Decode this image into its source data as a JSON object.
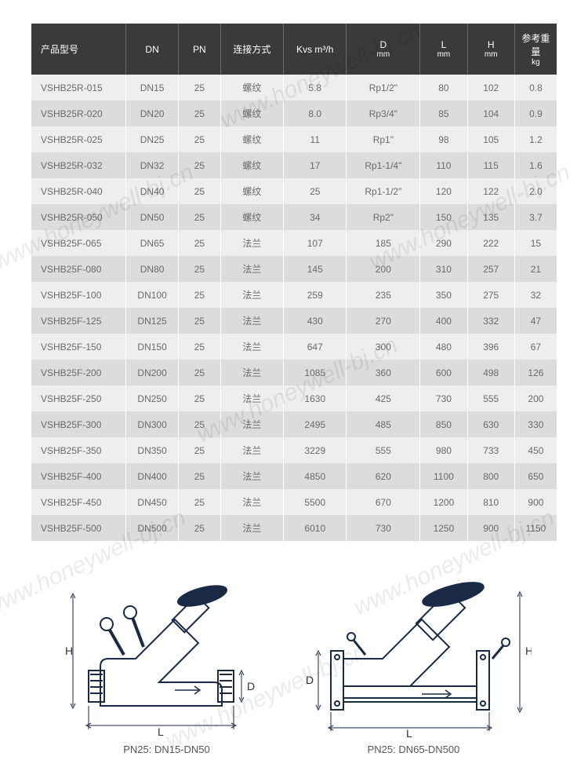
{
  "table": {
    "headers": [
      {
        "top": "产品型号",
        "sub": ""
      },
      {
        "top": "DN",
        "sub": ""
      },
      {
        "top": "PN",
        "sub": ""
      },
      {
        "top": "连接方式",
        "sub": ""
      },
      {
        "top": "Kvs m³/h",
        "sub": ""
      },
      {
        "top": "D",
        "sub": "mm"
      },
      {
        "top": "L",
        "sub": "mm"
      },
      {
        "top": "H",
        "sub": "mm"
      },
      {
        "top": "参考重量",
        "sub": "kg"
      }
    ],
    "rows": [
      [
        "VSHB25R-015",
        "DN15",
        "25",
        "螺纹",
        "5.8",
        "Rp1/2\"",
        "80",
        "102",
        "0.8"
      ],
      [
        "VSHB25R-020",
        "DN20",
        "25",
        "螺纹",
        "8.0",
        "Rp3/4\"",
        "85",
        "104",
        "0.9"
      ],
      [
        "VSHB25R-025",
        "DN25",
        "25",
        "螺纹",
        "11",
        "Rp1\"",
        "98",
        "105",
        "1.2"
      ],
      [
        "VSHB25R-032",
        "DN32",
        "25",
        "螺纹",
        "17",
        "Rp1-1/4\"",
        "110",
        "115",
        "1.6"
      ],
      [
        "VSHB25R-040",
        "DN40",
        "25",
        "螺纹",
        "25",
        "Rp1-1/2\"",
        "120",
        "122",
        "2.0"
      ],
      [
        "VSHB25R-050",
        "DN50",
        "25",
        "螺纹",
        "34",
        "Rp2\"",
        "150",
        "135",
        "3.7"
      ],
      [
        "VSHB25F-065",
        "DN65",
        "25",
        "法兰",
        "107",
        "185",
        "290",
        "222",
        "15"
      ],
      [
        "VSHB25F-080",
        "DN80",
        "25",
        "法兰",
        "145",
        "200",
        "310",
        "257",
        "21"
      ],
      [
        "VSHB25F-100",
        "DN100",
        "25",
        "法兰",
        "259",
        "235",
        "350",
        "275",
        "32"
      ],
      [
        "VSHB25F-125",
        "DN125",
        "25",
        "法兰",
        "430",
        "270",
        "400",
        "332",
        "47"
      ],
      [
        "VSHB25F-150",
        "DN150",
        "25",
        "法兰",
        "647",
        "300",
        "480",
        "396",
        "67"
      ],
      [
        "VSHB25F-200",
        "DN200",
        "25",
        "法兰",
        "1085",
        "360",
        "600",
        "498",
        "126"
      ],
      [
        "VSHB25F-250",
        "DN250",
        "25",
        "法兰",
        "1630",
        "425",
        "730",
        "555",
        "200"
      ],
      [
        "VSHB25F-300",
        "DN300",
        "25",
        "法兰",
        "2495",
        "485",
        "850",
        "630",
        "330"
      ],
      [
        "VSHB25F-350",
        "DN350",
        "25",
        "法兰",
        "3229",
        "555",
        "980",
        "733",
        "450"
      ],
      [
        "VSHB25F-400",
        "DN400",
        "25",
        "法兰",
        "4850",
        "620",
        "1100",
        "800",
        "650"
      ],
      [
        "VSHB25F-450",
        "DN450",
        "25",
        "法兰",
        "5500",
        "670",
        "1200",
        "810",
        "900"
      ],
      [
        "VSHB25F-500",
        "DN500",
        "25",
        "法兰",
        "6010",
        "730",
        "1250",
        "900",
        "1150"
      ]
    ],
    "col_widths": [
      "18%",
      "10%",
      "8%",
      "12%",
      "12%",
      "14%",
      "9%",
      "9%",
      "8%"
    ]
  },
  "diagrams": {
    "left": {
      "caption": "PN25: DN15-DN50",
      "labels": {
        "H": "H",
        "L": "L",
        "D": "D"
      }
    },
    "right": {
      "caption": "PN25: DN65-DN500",
      "labels": {
        "H": "H",
        "L": "L",
        "D": "D"
      }
    }
  },
  "watermark": "www.honeywell-bj.cn",
  "colors": {
    "header_bg": "#3a3a3a",
    "row_odd": "#eeeeee",
    "row_even": "#dcdcdc",
    "text": "#6a6a6a",
    "stroke": "#1a2a44"
  }
}
